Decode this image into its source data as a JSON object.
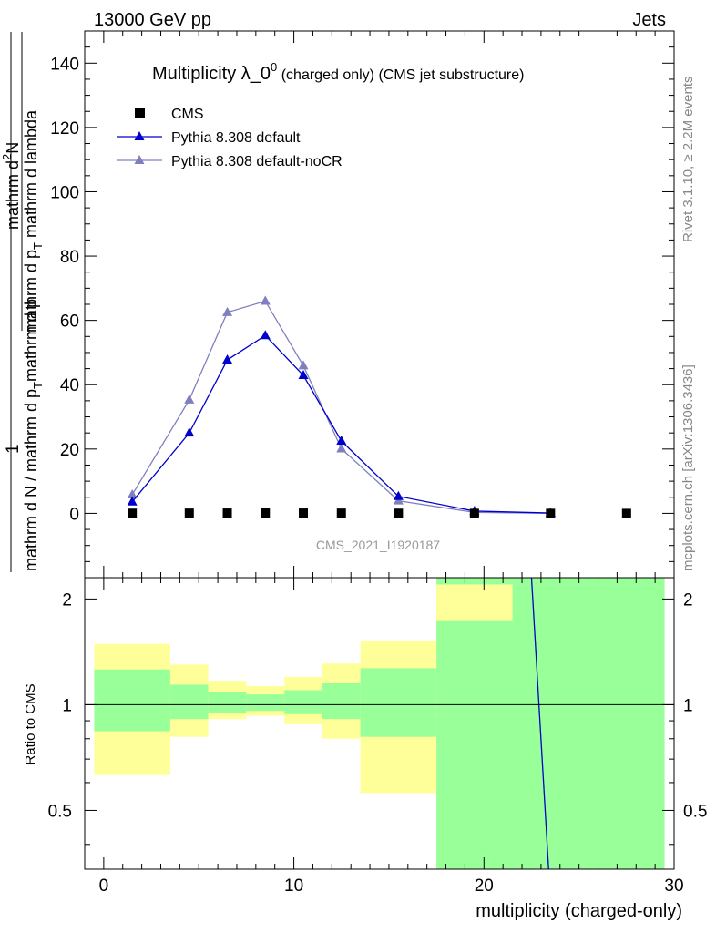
{
  "header": {
    "left_label": "13000 GeV pp",
    "right_label": "Jets"
  },
  "side_labels": {
    "rivet": "Rivet 3.1.10, ≥ 2.2M events",
    "mcplots": "mcplots.cern.ch [arXiv:1306.3436]"
  },
  "chart_data": [
    {
      "type": "scatter",
      "panel": "main",
      "title_main": "Multiplicity λ_0",
      "title_sup": "0",
      "title_suffix": " (charged only) (CMS jet substructure)",
      "watermark": "CMS_2021_I1920187",
      "ylabel_num": "1",
      "ylabel_num_den": "mathrm d N / mathrm d p",
      "ylabel_num_den_sub": "T",
      "ylabel_num_den_tail": "mathrm d p",
      "ylabel_den_text": "mathrm d",
      "ylabel_den_sup": "2",
      "ylabel_den_n": "N",
      "ylabel_main_den": "mathrm d p",
      "ylabel_main_den_sub": "T",
      "ylabel_main_den_tail": " mathrm d lambda",
      "xlim": [
        -1,
        30
      ],
      "ylim": [
        -20,
        150
      ],
      "yticks": [
        0,
        20,
        40,
        60,
        80,
        100,
        120,
        140
      ],
      "grid": false,
      "legend_position": "top-left",
      "series": [
        {
          "name": "CMS",
          "color": "#000000",
          "marker": "square",
          "x": [
            1.5,
            4.5,
            6.5,
            8.5,
            10.5,
            12.5,
            15.5,
            19.5,
            23.5,
            27.5
          ],
          "y": [
            0.05,
            0.08,
            0.1,
            0.12,
            0.1,
            0.08,
            0.05,
            0.02,
            0.01,
            0.005
          ]
        },
        {
          "name": "Pythia 8.308 default",
          "color": "#0000cc",
          "marker": "triangle",
          "x": [
            1.5,
            4.5,
            6.5,
            8.5,
            10.5,
            12.5,
            15.5,
            19.5,
            23.5
          ],
          "y": [
            3.6,
            25.0,
            47.7,
            55.3,
            42.9,
            22.5,
            5.3,
            0.7,
            0.1
          ]
        },
        {
          "name": "Pythia 8.308 default-noCR",
          "color": "#7f7fbf",
          "marker": "triangle",
          "x": [
            1.5,
            4.5,
            6.5,
            8.5,
            10.5,
            12.5,
            15.5,
            19.5,
            23.5
          ],
          "y": [
            5.8,
            35.3,
            62.5,
            66.0,
            45.9,
            20.1,
            3.9,
            0.3,
            0.0
          ]
        }
      ]
    },
    {
      "type": "area",
      "panel": "ratio",
      "ylabel": "Ratio to CMS",
      "xlabel": "multiplicity (charged-only)",
      "xlim": [
        -1,
        30
      ],
      "ylim": [
        0.34,
        2.3
      ],
      "xticks": [
        0,
        10,
        20,
        30
      ],
      "yticks": [
        0.5,
        1,
        2
      ],
      "ytick_labels": [
        "0.5",
        "1",
        "2"
      ],
      "reference_line": 1,
      "bins": [
        {
          "x0": -0.5,
          "x1": 3.5,
          "stat_lo": 0.84,
          "stat_hi": 1.26,
          "tot_lo": 0.63,
          "tot_hi": 1.49
        },
        {
          "x0": 3.5,
          "x1": 5.5,
          "stat_lo": 0.91,
          "stat_hi": 1.14,
          "tot_lo": 0.81,
          "tot_hi": 1.3
        },
        {
          "x0": 5.5,
          "x1": 7.5,
          "stat_lo": 0.95,
          "stat_hi": 1.09,
          "tot_lo": 0.91,
          "tot_hi": 1.17
        },
        {
          "x0": 7.5,
          "x1": 9.5,
          "stat_lo": 0.96,
          "stat_hi": 1.07,
          "tot_lo": 0.93,
          "tot_hi": 1.13
        },
        {
          "x0": 9.5,
          "x1": 11.5,
          "stat_lo": 0.94,
          "stat_hi": 1.1,
          "tot_lo": 0.88,
          "tot_hi": 1.2
        },
        {
          "x0": 11.5,
          "x1": 13.5,
          "stat_lo": 0.91,
          "stat_hi": 1.15,
          "tot_lo": 0.8,
          "tot_hi": 1.31
        },
        {
          "x0": 13.5,
          "x1": 17.5,
          "stat_lo": 0.81,
          "stat_hi": 1.27,
          "tot_lo": 0.56,
          "tot_hi": 1.52
        },
        {
          "x0": 17.5,
          "x1": 29.5,
          "stat_lo": 0.34,
          "stat_hi": 2.3,
          "tot_lo": 0.34,
          "tot_hi": 2.3,
          "yellow_band": {
            "x0": 17.5,
            "x1": 21.5,
            "lo": 1.73,
            "hi": 2.2
          }
        }
      ],
      "series": [
        {
          "name": "Pythia 8.308 default",
          "color": "#0000cc",
          "x": [
            22.5,
            23.4
          ],
          "y": [
            2.3,
            0.34
          ]
        }
      ],
      "colors": {
        "stat_band": "#99ff99",
        "total_band": "#ffff99"
      }
    }
  ]
}
